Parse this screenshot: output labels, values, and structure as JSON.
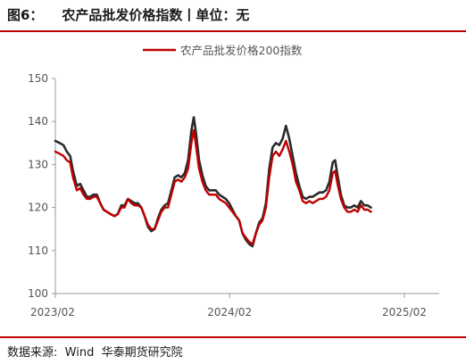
{
  "header": {
    "title": "图6：    农产品批发价格指数丨单位：无"
  },
  "footer": {
    "source": "数据来源:  Wind  华泰期货研究院"
  },
  "colors": {
    "accent_rule": "#c00000",
    "series_red": "#c00000",
    "series_dark": "#2b2b2b"
  },
  "chart_data": {
    "type": "line",
    "x_tick_labels": [
      "2023/02",
      "2024/02",
      "2025/02"
    ],
    "x_ticks": [
      "2023-02-01",
      "2024-02-01",
      "2025-02-01"
    ],
    "xlim": [
      "2023-02-01",
      "2025-04-15"
    ],
    "ylim": [
      100,
      150
    ],
    "y_ticks": [
      100,
      110,
      120,
      130,
      140,
      150
    ],
    "grid": false,
    "legend_position": "top-right",
    "series": [
      {
        "name": "农产品批发价格200指数",
        "color": "#c00000",
        "points": [
          [
            "2023-02-01",
            133.0
          ],
          [
            "2023-02-10",
            132.5
          ],
          [
            "2023-02-18",
            132.0
          ],
          [
            "2023-02-25",
            131.0
          ],
          [
            "2023-03-04",
            130.5
          ],
          [
            "2023-03-10",
            127.0
          ],
          [
            "2023-03-18",
            124.0
          ],
          [
            "2023-03-25",
            124.5
          ],
          [
            "2023-04-01",
            123.0
          ],
          [
            "2023-04-08",
            122.0
          ],
          [
            "2023-04-15",
            122.0
          ],
          [
            "2023-04-22",
            122.5
          ],
          [
            "2023-04-29",
            122.5
          ],
          [
            "2023-05-06",
            121.0
          ],
          [
            "2023-05-13",
            119.5
          ],
          [
            "2023-05-20",
            119.0
          ],
          [
            "2023-05-27",
            118.5
          ],
          [
            "2023-06-05",
            118.0
          ],
          [
            "2023-06-12",
            118.5
          ],
          [
            "2023-06-19",
            120.0
          ],
          [
            "2023-06-26",
            120.0
          ],
          [
            "2023-07-03",
            122.0
          ],
          [
            "2023-07-10",
            121.0
          ],
          [
            "2023-07-17",
            120.5
          ],
          [
            "2023-07-24",
            120.5
          ],
          [
            "2023-07-31",
            120.0
          ],
          [
            "2023-08-07",
            118.0
          ],
          [
            "2023-08-14",
            116.0
          ],
          [
            "2023-08-21",
            115.0
          ],
          [
            "2023-08-28",
            115.0
          ],
          [
            "2023-09-04",
            117.0
          ],
          [
            "2023-09-11",
            119.0
          ],
          [
            "2023-09-18",
            120.0
          ],
          [
            "2023-09-25",
            120.0
          ],
          [
            "2023-10-02",
            123.0
          ],
          [
            "2023-10-09",
            126.0
          ],
          [
            "2023-10-16",
            126.5
          ],
          [
            "2023-10-23",
            126.0
          ],
          [
            "2023-10-30",
            127.0
          ],
          [
            "2023-11-06",
            129.0
          ],
          [
            "2023-11-13",
            135.0
          ],
          [
            "2023-11-18",
            138.0
          ],
          [
            "2023-11-23",
            134.0
          ],
          [
            "2023-11-29",
            129.0
          ],
          [
            "2023-12-06",
            126.0
          ],
          [
            "2023-12-13",
            124.0
          ],
          [
            "2023-12-20",
            123.0
          ],
          [
            "2023-12-27",
            123.0
          ],
          [
            "2024-01-03",
            123.0
          ],
          [
            "2024-01-10",
            122.0
          ],
          [
            "2024-01-17",
            121.5
          ],
          [
            "2024-01-24",
            121.0
          ],
          [
            "2024-01-31",
            120.0
          ],
          [
            "2024-02-07",
            119.0
          ],
          [
            "2024-02-14",
            118.0
          ],
          [
            "2024-02-21",
            117.0
          ],
          [
            "2024-02-28",
            114.0
          ],
          [
            "2024-03-06",
            113.0
          ],
          [
            "2024-03-13",
            112.0
          ],
          [
            "2024-03-20",
            111.5
          ],
          [
            "2024-03-27",
            114.0
          ],
          [
            "2024-04-03",
            116.0
          ],
          [
            "2024-04-10",
            117.0
          ],
          [
            "2024-04-17",
            120.0
          ],
          [
            "2024-04-24",
            127.0
          ],
          [
            "2024-05-01",
            132.0
          ],
          [
            "2024-05-08",
            133.0
          ],
          [
            "2024-05-15",
            132.0
          ],
          [
            "2024-05-22",
            133.5
          ],
          [
            "2024-05-29",
            135.5
          ],
          [
            "2024-06-05",
            133.0
          ],
          [
            "2024-06-12",
            130.0
          ],
          [
            "2024-06-19",
            126.0
          ],
          [
            "2024-06-26",
            124.0
          ],
          [
            "2024-07-03",
            121.5
          ],
          [
            "2024-07-10",
            121.0
          ],
          [
            "2024-07-17",
            121.5
          ],
          [
            "2024-07-24",
            121.0
          ],
          [
            "2024-07-31",
            121.5
          ],
          [
            "2024-08-07",
            122.0
          ],
          [
            "2024-08-14",
            122.0
          ],
          [
            "2024-08-21",
            122.5
          ],
          [
            "2024-08-28",
            124.0
          ],
          [
            "2024-09-04",
            128.0
          ],
          [
            "2024-09-09",
            128.5
          ],
          [
            "2024-09-14",
            125.5
          ],
          [
            "2024-09-21",
            122.0
          ],
          [
            "2024-09-28",
            120.0
          ],
          [
            "2024-10-05",
            119.0
          ],
          [
            "2024-10-12",
            119.0
          ],
          [
            "2024-10-19",
            119.5
          ],
          [
            "2024-10-26",
            119.0
          ],
          [
            "2024-11-02",
            120.5
          ],
          [
            "2024-11-09",
            119.5
          ],
          [
            "2024-11-16",
            119.5
          ],
          [
            "2024-11-23",
            119.0
          ]
        ]
      },
      {
        "name": "",
        "color": "#2b2b2b",
        "points": [
          [
            "2023-02-01",
            135.5
          ],
          [
            "2023-02-10",
            135.0
          ],
          [
            "2023-02-18",
            134.5
          ],
          [
            "2023-02-25",
            133.0
          ],
          [
            "2023-03-04",
            132.0
          ],
          [
            "2023-03-10",
            128.5
          ],
          [
            "2023-03-18",
            125.0
          ],
          [
            "2023-03-25",
            125.5
          ],
          [
            "2023-04-01",
            124.0
          ],
          [
            "2023-04-08",
            122.5
          ],
          [
            "2023-04-15",
            122.5
          ],
          [
            "2023-04-22",
            123.0
          ],
          [
            "2023-04-29",
            123.0
          ],
          [
            "2023-05-06",
            121.0
          ],
          [
            "2023-05-13",
            119.5
          ],
          [
            "2023-05-20",
            119.0
          ],
          [
            "2023-05-27",
            118.5
          ],
          [
            "2023-06-05",
            118.0
          ],
          [
            "2023-06-12",
            118.5
          ],
          [
            "2023-06-19",
            120.5
          ],
          [
            "2023-06-26",
            120.5
          ],
          [
            "2023-07-03",
            122.0
          ],
          [
            "2023-07-10",
            121.5
          ],
          [
            "2023-07-17",
            121.0
          ],
          [
            "2023-07-24",
            121.0
          ],
          [
            "2023-07-31",
            120.0
          ],
          [
            "2023-08-07",
            118.0
          ],
          [
            "2023-08-14",
            115.5
          ],
          [
            "2023-08-21",
            114.5
          ],
          [
            "2023-08-28",
            115.0
          ],
          [
            "2023-09-04",
            117.5
          ],
          [
            "2023-09-11",
            119.5
          ],
          [
            "2023-09-18",
            120.5
          ],
          [
            "2023-09-25",
            121.0
          ],
          [
            "2023-10-02",
            124.0
          ],
          [
            "2023-10-09",
            127.0
          ],
          [
            "2023-10-16",
            127.5
          ],
          [
            "2023-10-23",
            127.0
          ],
          [
            "2023-10-30",
            128.0
          ],
          [
            "2023-11-06",
            131.0
          ],
          [
            "2023-11-13",
            138.0
          ],
          [
            "2023-11-18",
            141.0
          ],
          [
            "2023-11-23",
            137.0
          ],
          [
            "2023-11-29",
            131.0
          ],
          [
            "2023-12-06",
            127.5
          ],
          [
            "2023-12-13",
            125.0
          ],
          [
            "2023-12-20",
            124.0
          ],
          [
            "2023-12-27",
            124.0
          ],
          [
            "2024-01-03",
            124.0
          ],
          [
            "2024-01-10",
            123.0
          ],
          [
            "2024-01-17",
            122.5
          ],
          [
            "2024-01-24",
            122.0
          ],
          [
            "2024-01-31",
            121.0
          ],
          [
            "2024-02-07",
            119.5
          ],
          [
            "2024-02-14",
            118.0
          ],
          [
            "2024-02-21",
            117.0
          ],
          [
            "2024-02-28",
            114.0
          ],
          [
            "2024-03-06",
            112.5
          ],
          [
            "2024-03-13",
            111.5
          ],
          [
            "2024-03-20",
            111.0
          ],
          [
            "2024-03-27",
            114.0
          ],
          [
            "2024-04-03",
            116.5
          ],
          [
            "2024-04-10",
            117.5
          ],
          [
            "2024-04-17",
            121.0
          ],
          [
            "2024-04-24",
            129.0
          ],
          [
            "2024-05-01",
            134.0
          ],
          [
            "2024-05-08",
            135.0
          ],
          [
            "2024-05-15",
            134.5
          ],
          [
            "2024-05-22",
            136.0
          ],
          [
            "2024-05-29",
            139.0
          ],
          [
            "2024-06-05",
            136.0
          ],
          [
            "2024-06-12",
            132.0
          ],
          [
            "2024-06-19",
            128.0
          ],
          [
            "2024-06-26",
            125.0
          ],
          [
            "2024-07-03",
            122.5
          ],
          [
            "2024-07-10",
            122.0
          ],
          [
            "2024-07-17",
            122.5
          ],
          [
            "2024-07-24",
            122.5
          ],
          [
            "2024-07-31",
            123.0
          ],
          [
            "2024-08-07",
            123.5
          ],
          [
            "2024-08-14",
            123.5
          ],
          [
            "2024-08-21",
            124.0
          ],
          [
            "2024-08-28",
            126.0
          ],
          [
            "2024-09-04",
            130.5
          ],
          [
            "2024-09-09",
            131.0
          ],
          [
            "2024-09-14",
            127.5
          ],
          [
            "2024-09-21",
            123.0
          ],
          [
            "2024-09-28",
            120.5
          ],
          [
            "2024-10-05",
            120.0
          ],
          [
            "2024-10-12",
            120.0
          ],
          [
            "2024-10-19",
            120.5
          ],
          [
            "2024-10-26",
            120.0
          ],
          [
            "2024-11-02",
            121.5
          ],
          [
            "2024-11-09",
            120.5
          ],
          [
            "2024-11-16",
            120.5
          ],
          [
            "2024-11-23",
            120.0
          ]
        ]
      }
    ]
  }
}
